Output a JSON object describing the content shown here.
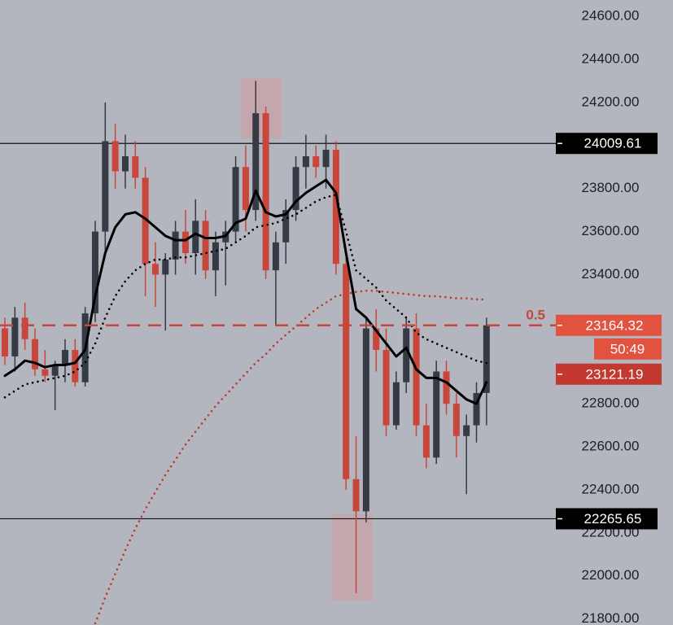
{
  "chart_data": {
    "type": "candlestick",
    "ylim": [
      21772,
      24676
    ],
    "yticks": [
      {
        "value": 24600,
        "label": "24600.00"
      },
      {
        "value": 24400,
        "label": "24400.00"
      },
      {
        "value": 24200,
        "label": "24200.00"
      },
      {
        "value": 23800,
        "label": "23800.00"
      },
      {
        "value": 23600,
        "label": "23600.00"
      },
      {
        "value": 23400,
        "label": "23400.00"
      },
      {
        "value": 22800,
        "label": "22800.00"
      },
      {
        "value": 22600,
        "label": "22600.00"
      },
      {
        "value": 22400,
        "label": "22400.00"
      },
      {
        "value": 22200,
        "label": "22200.00"
      },
      {
        "value": 22000,
        "label": "22000.00"
      },
      {
        "value": 21800,
        "label": "21800.00"
      }
    ],
    "up_color": "#363a45",
    "down_color": "#c8463c",
    "candles": {
      "open": [
        23150,
        23020,
        23200,
        23100,
        22960,
        22930,
        22980,
        23050,
        22900,
        23220,
        23600,
        24020,
        23880,
        23950,
        23850,
        23450,
        23400,
        23470,
        23600,
        23500,
        23650,
        23420,
        23550,
        23600,
        23900,
        23700,
        24150,
        23420,
        23550,
        23700,
        23900,
        23950,
        23900,
        23980,
        23450,
        22450,
        22300,
        23150,
        23050,
        22700,
        22900,
        23150,
        22700,
        22550,
        22950,
        22800,
        22650,
        22700,
        22850
      ],
      "high": [
        23200,
        23250,
        23270,
        23150,
        23050,
        23000,
        23100,
        23100,
        23250,
        23650,
        24200,
        24100,
        24050,
        24020,
        23900,
        23550,
        23500,
        23650,
        23700,
        23750,
        23700,
        23600,
        23650,
        23950,
        24000,
        24300,
        24180,
        23600,
        23750,
        23950,
        24050,
        24000,
        24050,
        24020,
        23480,
        22650,
        23200,
        23240,
        23150,
        22950,
        23200,
        23220,
        22800,
        23000,
        23000,
        22850,
        22750,
        22900,
        23200
      ],
      "low": [
        22980,
        22950,
        23050,
        22930,
        22900,
        22770,
        22900,
        22880,
        22880,
        23180,
        23500,
        23800,
        23800,
        23800,
        23300,
        23250,
        23140,
        23400,
        23450,
        23400,
        23380,
        23300,
        23350,
        23550,
        23600,
        23650,
        23380,
        23160,
        23450,
        23650,
        23800,
        23850,
        23800,
        23400,
        22400,
        21920,
        22250,
        22950,
        22650,
        22680,
        22850,
        22650,
        22500,
        22520,
        22750,
        22550,
        22380,
        22620,
        22700
      ],
      "close": [
        23020,
        23200,
        23100,
        22960,
        22930,
        22980,
        23050,
        22900,
        23220,
        23600,
        24020,
        23880,
        23950,
        23850,
        23450,
        23400,
        23470,
        23600,
        23500,
        23650,
        23420,
        23550,
        23600,
        23900,
        23700,
        24150,
        23420,
        23550,
        23700,
        23900,
        23950,
        23900,
        23980,
        23450,
        22450,
        22300,
        23150,
        23050,
        22700,
        22900,
        23150,
        22700,
        22550,
        22950,
        22800,
        22650,
        22700,
        22850,
        23164.32
      ]
    },
    "moving_averages": [
      {
        "color": "#c0392b",
        "style": "dotted",
        "values": [
          null,
          null,
          null,
          null,
          null,
          null,
          null,
          null,
          null,
          21780,
          21900,
          22010,
          22120,
          22220,
          22310,
          22390,
          22470,
          22540,
          22610,
          22670,
          22730,
          22790,
          22840,
          22890,
          22940,
          22990,
          23030,
          23080,
          23120,
          23160,
          23200,
          23240,
          23270,
          23300,
          23310,
          23320,
          23325,
          23325,
          23320,
          23315,
          23310,
          23305,
          23300,
          23300,
          23295,
          23290,
          23290,
          23285,
          23285
        ]
      },
      {
        "color": "#000000",
        "style": "dotted",
        "values": [
          22830,
          22860,
          22890,
          22900,
          22910,
          22920,
          22930,
          22950,
          22990,
          23080,
          23200,
          23300,
          23370,
          23420,
          23450,
          23470,
          23470,
          23480,
          23480,
          23490,
          23500,
          23510,
          23520,
          23550,
          23580,
          23620,
          23630,
          23640,
          23660,
          23680,
          23710,
          23740,
          23760,
          23770,
          23600,
          23420,
          23380,
          23340,
          23280,
          23240,
          23200,
          23130,
          23100,
          23080,
          23060,
          23040,
          23020,
          23000,
          22990
        ]
      },
      {
        "color": "#000000",
        "style": "solid",
        "values": [
          22930,
          22960,
          23000,
          22990,
          22970,
          22980,
          22980,
          22990,
          23050,
          23300,
          23500,
          23620,
          23680,
          23690,
          23660,
          23620,
          23580,
          23560,
          23560,
          23590,
          23570,
          23570,
          23580,
          23640,
          23660,
          23790,
          23690,
          23670,
          23680,
          23740,
          23780,
          23810,
          23840,
          23780,
          23500,
          23240,
          23200,
          23140,
          23080,
          23020,
          23060,
          22960,
          22920,
          22920,
          22900,
          22860,
          22820,
          22800,
          22900
        ]
      }
    ],
    "levels": [
      24009.61,
      22265.65
    ],
    "fib_level": {
      "label": 0.5,
      "value": 23164.32,
      "color": "#c8463c"
    },
    "countdown": "50:49",
    "ma_price": 23121.19
  }
}
